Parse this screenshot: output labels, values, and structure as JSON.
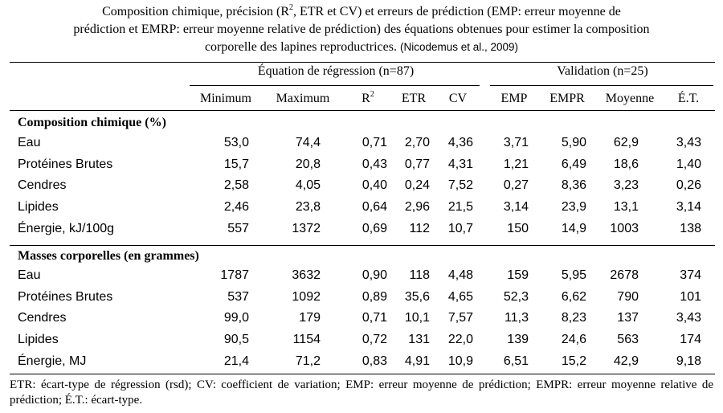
{
  "caption": {
    "line1_a": "Composition chimique, précision (R",
    "line1_sup": "2",
    "line1_b": ", ETR et CV) et erreurs de prédiction (EMP: erreur moyenne de",
    "line2": "prédiction et EMRP: erreur moyenne relative de prédiction) des équations obtenues pour estimer la composition",
    "line3": "corporelle des lapines reproductrices.",
    "citation": "(Nicodemus et al., 2009)"
  },
  "header": {
    "group_regression": "Équation de régression (n=87)",
    "group_validation": "Validation (n=25)",
    "minimum": "Minimum",
    "maximum": "Maximum",
    "r2_base": "R",
    "r2_sup": "2",
    "etr": "ETR",
    "cv": "CV",
    "emp": "EMP",
    "empr": "EMPR",
    "moyenne": "Moyenne",
    "et": "É.T."
  },
  "sections": [
    {
      "title": "Composition chimique (%)",
      "rows": [
        {
          "label": "Eau",
          "values": [
            "53,0",
            "74,4",
            "0,71",
            "2,70",
            "4,36",
            "3,71",
            "5,90",
            "62,9",
            "3,43"
          ]
        },
        {
          "label": "Protéines Brutes",
          "values": [
            "15,7",
            "20,8",
            "0,43",
            "0,77",
            "4,31",
            "1,21",
            "6,49",
            "18,6",
            "1,40"
          ]
        },
        {
          "label": "Cendres",
          "values": [
            "2,58",
            "4,05",
            "0,40",
            "0,24",
            "7,52",
            "0,27",
            "8,36",
            "3,23",
            "0,26"
          ]
        },
        {
          "label": "Lipides",
          "values": [
            "2,46",
            "23,8",
            "0,64",
            "2,96",
            "21,5",
            "3,14",
            "23,9",
            "13,1",
            "3,14"
          ]
        },
        {
          "label": "Énergie, kJ/100g",
          "values": [
            "557",
            "1372",
            "0,69",
            "112",
            "10,7",
            "150",
            "14,9",
            "1003",
            "138"
          ]
        }
      ]
    },
    {
      "title": "Masses corporelles (en grammes)",
      "rows": [
        {
          "label": "Eau",
          "values": [
            "1787",
            "3632",
            "0,90",
            "118",
            "4,48",
            "159",
            "5,95",
            "2678",
            "374"
          ]
        },
        {
          "label": "Protéines Brutes",
          "values": [
            "537",
            "1092",
            "0,89",
            "35,6",
            "4,65",
            "52,3",
            "6,62",
            "790",
            "101"
          ]
        },
        {
          "label": "Cendres",
          "values": [
            "99,0",
            "179",
            "0,71",
            "10,1",
            "7,57",
            "11,3",
            "8,23",
            "137",
            "3,43"
          ]
        },
        {
          "label": "Lipides",
          "values": [
            "90,5",
            "1154",
            "0,72",
            "131",
            "22,0",
            "139",
            "24,6",
            "563",
            "174"
          ]
        },
        {
          "label": "Énergie, MJ",
          "values": [
            "21,4",
            "71,2",
            "0,83",
            "4,91",
            "10,9",
            "6,51",
            "15,2",
            "42,9",
            "9,18"
          ]
        }
      ]
    }
  ],
  "footnote": "ETR: écart-type de régression (rsd); CV: coefficient de variation; EMP: erreur moyenne de prédiction; EMPR: erreur moyenne relative de prédiction; É.T.: écart-type."
}
